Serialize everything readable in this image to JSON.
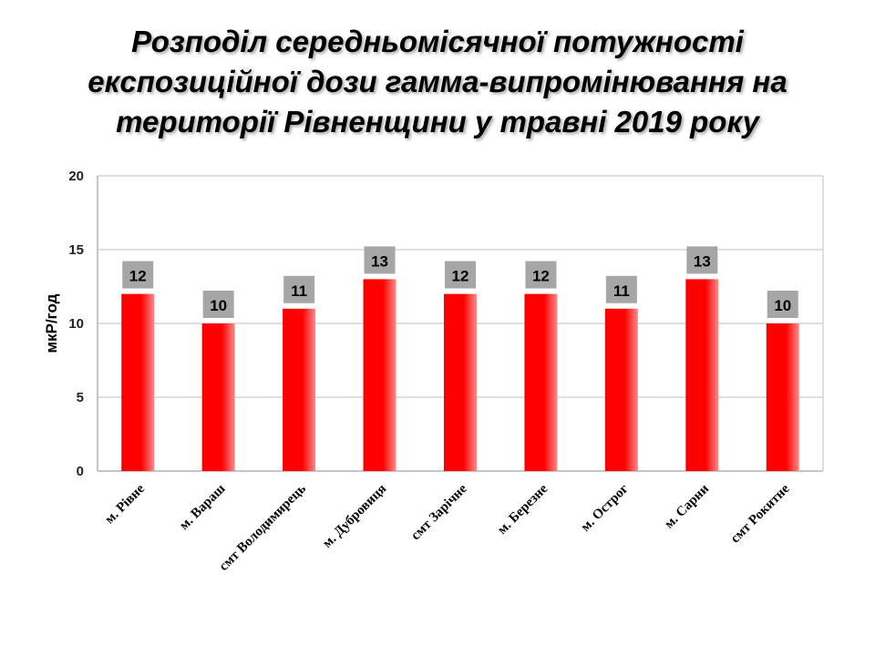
{
  "title_lines": [
    "Розподіл середньомісячної потужності",
    "експозиційної дози гамма-випромінювання на",
    "території Рівненщини у травні 2019 року"
  ],
  "colors": {
    "bar": "#ff0000",
    "label_box": "#a6a6a6",
    "grid": "#bfbfbf"
  },
  "chart_data": {
    "type": "bar",
    "title": "Розподіл середньомісячної потужності експозиційної дози гамма-випромінювання на території Рівненщини у травні 2019 року",
    "xlabel": "",
    "ylabel": "мкР/год",
    "ylim": [
      0,
      20
    ],
    "yticks": [
      0,
      5,
      10,
      15,
      20
    ],
    "grid": true,
    "categories": [
      "м. Рівне",
      "м. Вараш",
      "смт Володимирець",
      "м. Дубровиця",
      "смт Зарічне",
      "м. Березне",
      "м. Острог",
      "м. Сарни",
      "смт Рокитне"
    ],
    "values": [
      12,
      10,
      11,
      13,
      12,
      12,
      11,
      13,
      10
    ]
  }
}
